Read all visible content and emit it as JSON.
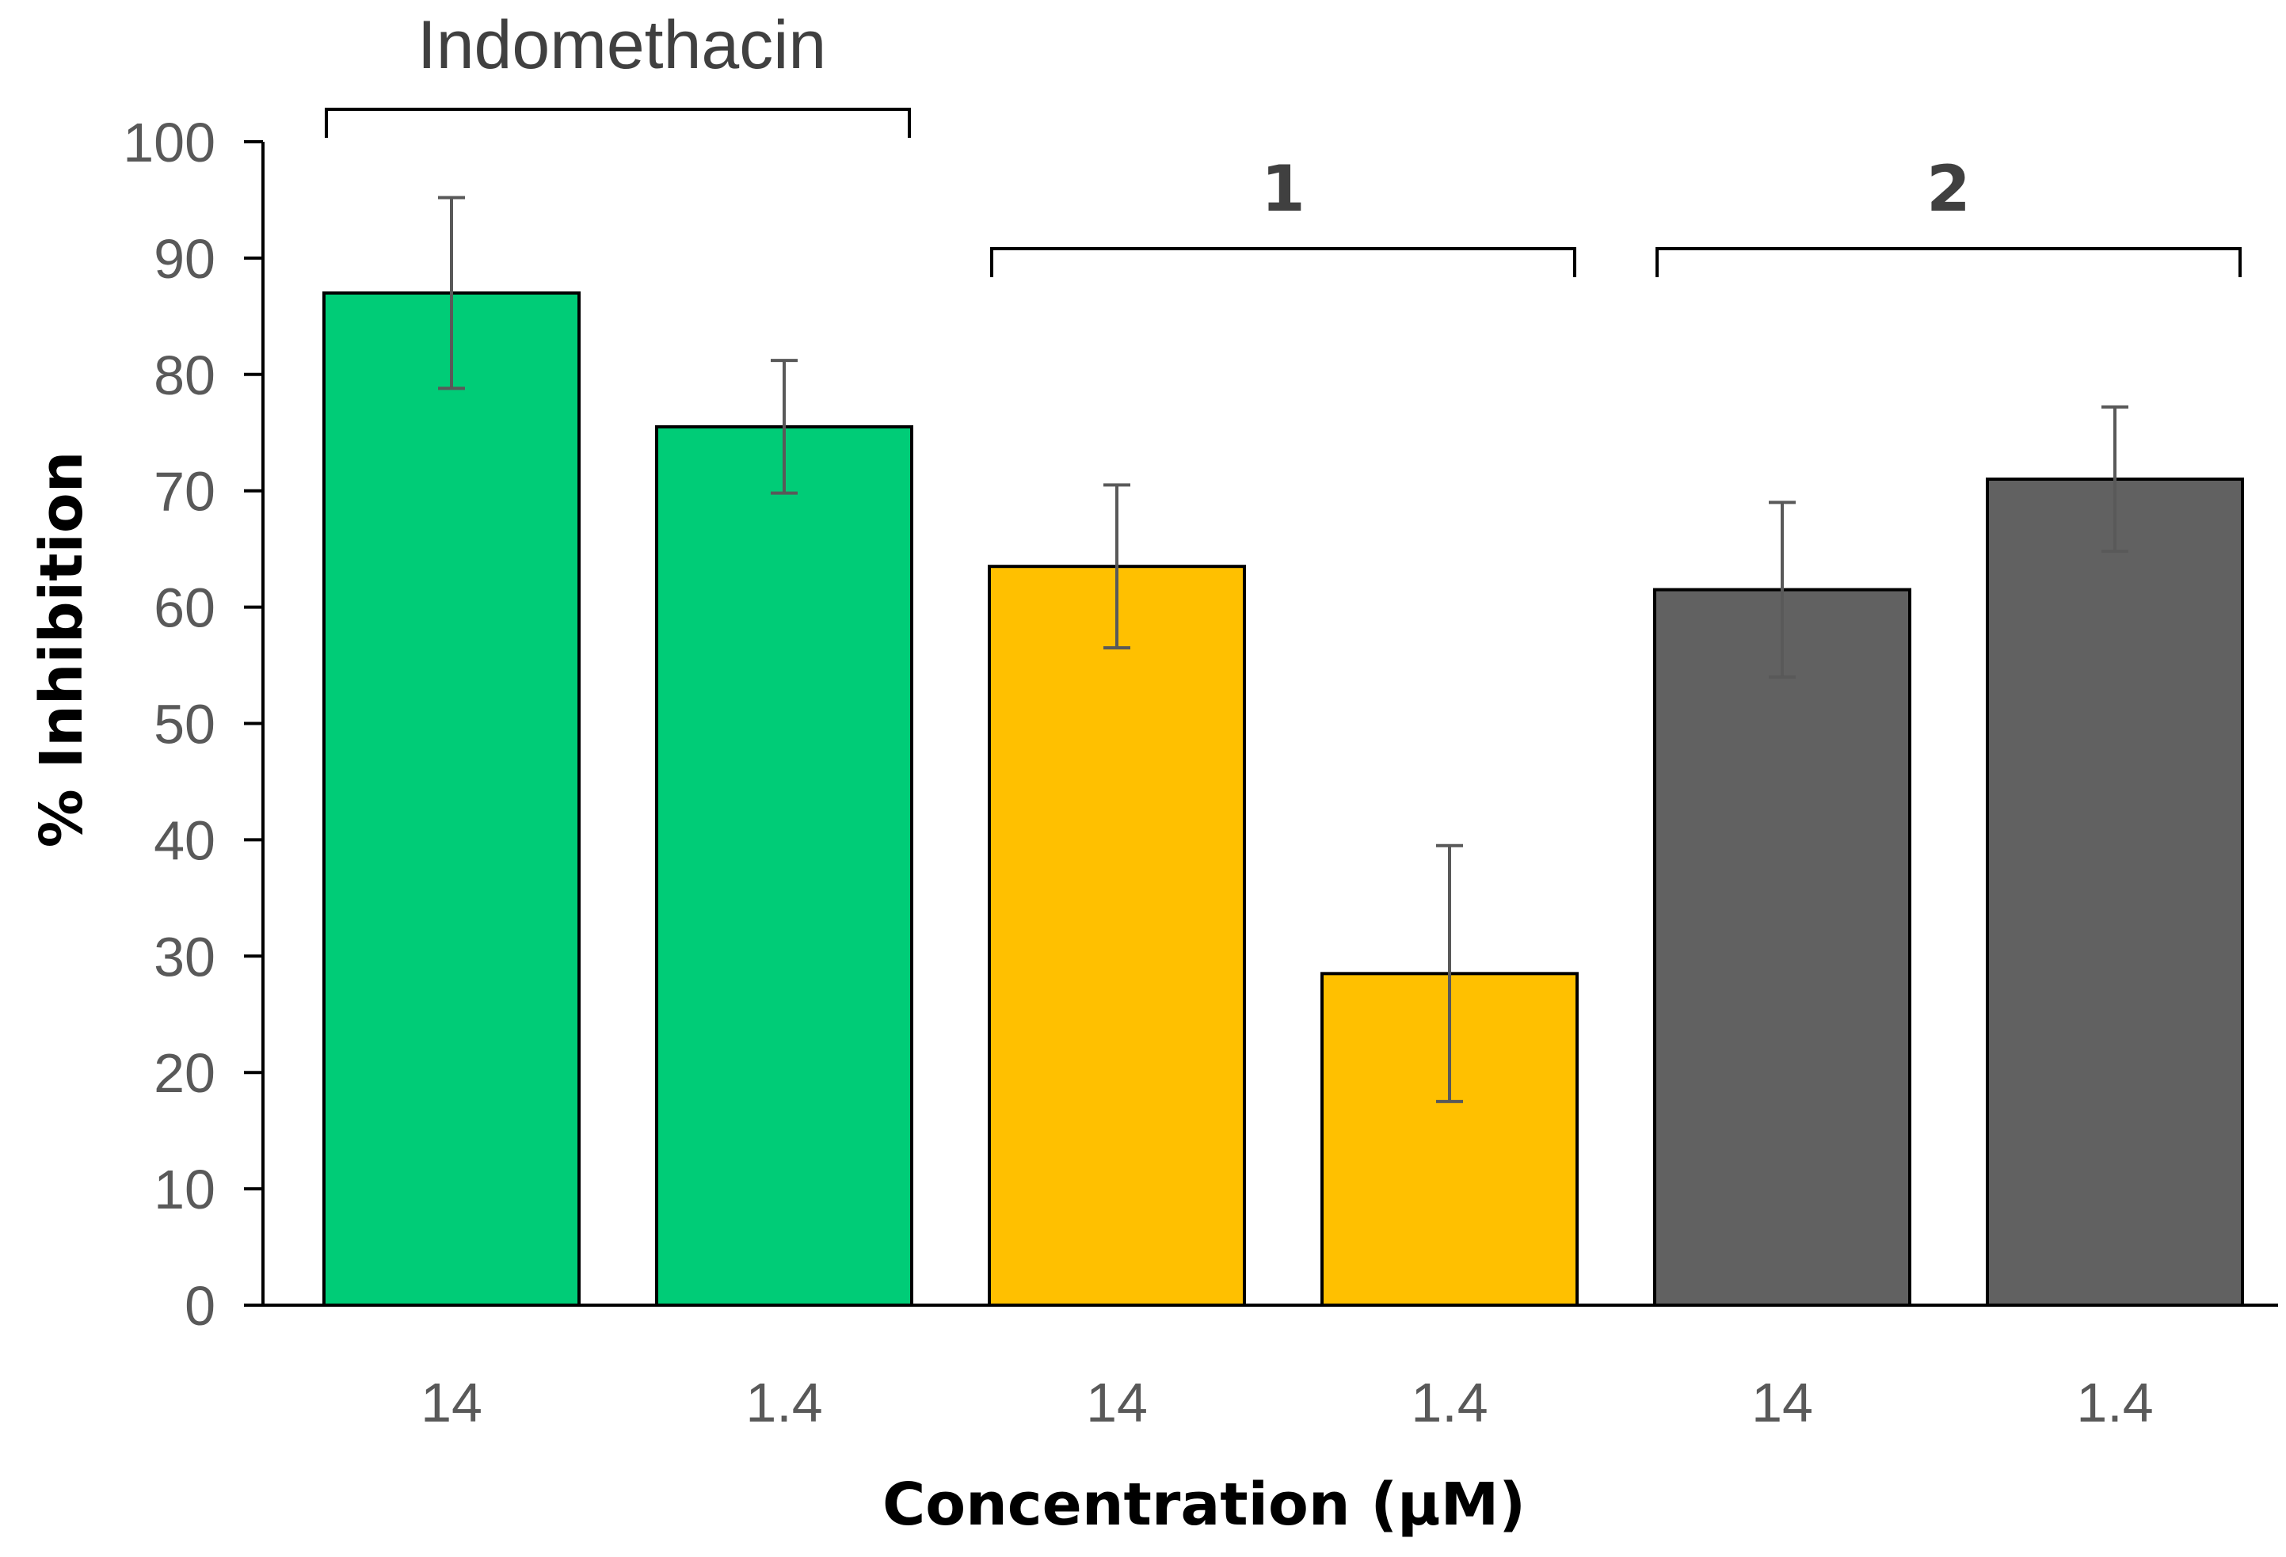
{
  "chart_data": {
    "type": "bar",
    "title": "",
    "xlabel": "Concentration (µM)",
    "ylabel": "% Inhibition",
    "ylim": [
      0,
      100
    ],
    "yticks": [
      0,
      10,
      20,
      30,
      40,
      50,
      60,
      70,
      80,
      90,
      100
    ],
    "grid": false,
    "legend": "none",
    "categories": [
      "14",
      "1.4",
      "14",
      "1.4",
      "14",
      "1.4"
    ],
    "values": [
      87,
      75.5,
      63.5,
      28.5,
      61.5,
      71
    ],
    "errors": [
      8.2,
      5.7,
      7,
      11,
      7.5,
      6.2
    ],
    "groups": [
      {
        "label": "Indomethacin",
        "bold": false,
        "color": "#00CC77",
        "start": 0,
        "end": 1
      },
      {
        "label": "1",
        "bold": true,
        "color": "#FFC000",
        "start": 2,
        "end": 3
      },
      {
        "label": "2",
        "bold": true,
        "color": "#616161",
        "start": 4,
        "end": 5
      }
    ],
    "bar_colors": [
      "#00CC77",
      "#00CC77",
      "#FFC000",
      "#FFC000",
      "#616161",
      "#616161"
    ],
    "bar_edge_color": "#000000",
    "errorbar_color": "#595959",
    "bracket_color": "#000000"
  }
}
